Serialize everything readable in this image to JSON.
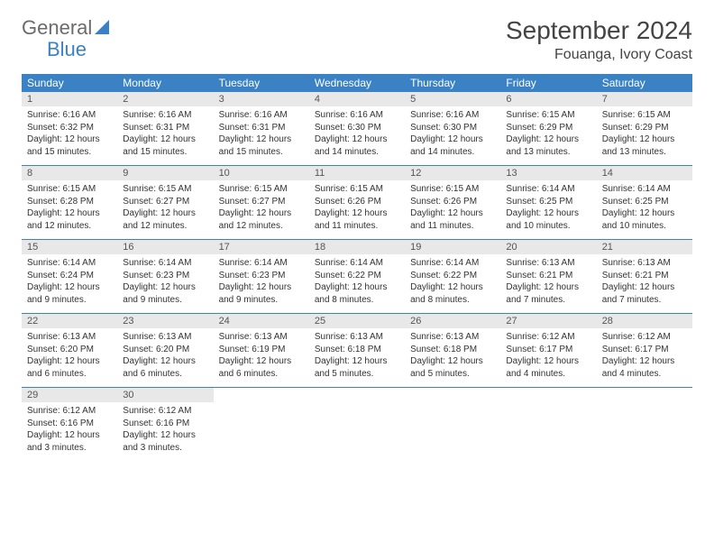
{
  "logo": {
    "text1": "General",
    "text2": "Blue"
  },
  "title": "September 2024",
  "location": "Fouanga, Ivory Coast",
  "colors": {
    "header_bg": "#3b82c4",
    "daynum_bg": "#e8e8e8",
    "border": "#3b82c4"
  },
  "day_names": [
    "Sunday",
    "Monday",
    "Tuesday",
    "Wednesday",
    "Thursday",
    "Friday",
    "Saturday"
  ],
  "days": [
    {
      "n": "1",
      "sr": "6:16 AM",
      "ss": "6:32 PM",
      "dl": "12 hours and 15 minutes."
    },
    {
      "n": "2",
      "sr": "6:16 AM",
      "ss": "6:31 PM",
      "dl": "12 hours and 15 minutes."
    },
    {
      "n": "3",
      "sr": "6:16 AM",
      "ss": "6:31 PM",
      "dl": "12 hours and 15 minutes."
    },
    {
      "n": "4",
      "sr": "6:16 AM",
      "ss": "6:30 PM",
      "dl": "12 hours and 14 minutes."
    },
    {
      "n": "5",
      "sr": "6:16 AM",
      "ss": "6:30 PM",
      "dl": "12 hours and 14 minutes."
    },
    {
      "n": "6",
      "sr": "6:15 AM",
      "ss": "6:29 PM",
      "dl": "12 hours and 13 minutes."
    },
    {
      "n": "7",
      "sr": "6:15 AM",
      "ss": "6:29 PM",
      "dl": "12 hours and 13 minutes."
    },
    {
      "n": "8",
      "sr": "6:15 AM",
      "ss": "6:28 PM",
      "dl": "12 hours and 12 minutes."
    },
    {
      "n": "9",
      "sr": "6:15 AM",
      "ss": "6:27 PM",
      "dl": "12 hours and 12 minutes."
    },
    {
      "n": "10",
      "sr": "6:15 AM",
      "ss": "6:27 PM",
      "dl": "12 hours and 12 minutes."
    },
    {
      "n": "11",
      "sr": "6:15 AM",
      "ss": "6:26 PM",
      "dl": "12 hours and 11 minutes."
    },
    {
      "n": "12",
      "sr": "6:15 AM",
      "ss": "6:26 PM",
      "dl": "12 hours and 11 minutes."
    },
    {
      "n": "13",
      "sr": "6:14 AM",
      "ss": "6:25 PM",
      "dl": "12 hours and 10 minutes."
    },
    {
      "n": "14",
      "sr": "6:14 AM",
      "ss": "6:25 PM",
      "dl": "12 hours and 10 minutes."
    },
    {
      "n": "15",
      "sr": "6:14 AM",
      "ss": "6:24 PM",
      "dl": "12 hours and 9 minutes."
    },
    {
      "n": "16",
      "sr": "6:14 AM",
      "ss": "6:23 PM",
      "dl": "12 hours and 9 minutes."
    },
    {
      "n": "17",
      "sr": "6:14 AM",
      "ss": "6:23 PM",
      "dl": "12 hours and 9 minutes."
    },
    {
      "n": "18",
      "sr": "6:14 AM",
      "ss": "6:22 PM",
      "dl": "12 hours and 8 minutes."
    },
    {
      "n": "19",
      "sr": "6:14 AM",
      "ss": "6:22 PM",
      "dl": "12 hours and 8 minutes."
    },
    {
      "n": "20",
      "sr": "6:13 AM",
      "ss": "6:21 PM",
      "dl": "12 hours and 7 minutes."
    },
    {
      "n": "21",
      "sr": "6:13 AM",
      "ss": "6:21 PM",
      "dl": "12 hours and 7 minutes."
    },
    {
      "n": "22",
      "sr": "6:13 AM",
      "ss": "6:20 PM",
      "dl": "12 hours and 6 minutes."
    },
    {
      "n": "23",
      "sr": "6:13 AM",
      "ss": "6:20 PM",
      "dl": "12 hours and 6 minutes."
    },
    {
      "n": "24",
      "sr": "6:13 AM",
      "ss": "6:19 PM",
      "dl": "12 hours and 6 minutes."
    },
    {
      "n": "25",
      "sr": "6:13 AM",
      "ss": "6:18 PM",
      "dl": "12 hours and 5 minutes."
    },
    {
      "n": "26",
      "sr": "6:13 AM",
      "ss": "6:18 PM",
      "dl": "12 hours and 5 minutes."
    },
    {
      "n": "27",
      "sr": "6:12 AM",
      "ss": "6:17 PM",
      "dl": "12 hours and 4 minutes."
    },
    {
      "n": "28",
      "sr": "6:12 AM",
      "ss": "6:17 PM",
      "dl": "12 hours and 4 minutes."
    },
    {
      "n": "29",
      "sr": "6:12 AM",
      "ss": "6:16 PM",
      "dl": "12 hours and 3 minutes."
    },
    {
      "n": "30",
      "sr": "6:12 AM",
      "ss": "6:16 PM",
      "dl": "12 hours and 3 minutes."
    }
  ],
  "labels": {
    "sunrise": "Sunrise: ",
    "sunset": "Sunset: ",
    "daylight": "Daylight: "
  }
}
